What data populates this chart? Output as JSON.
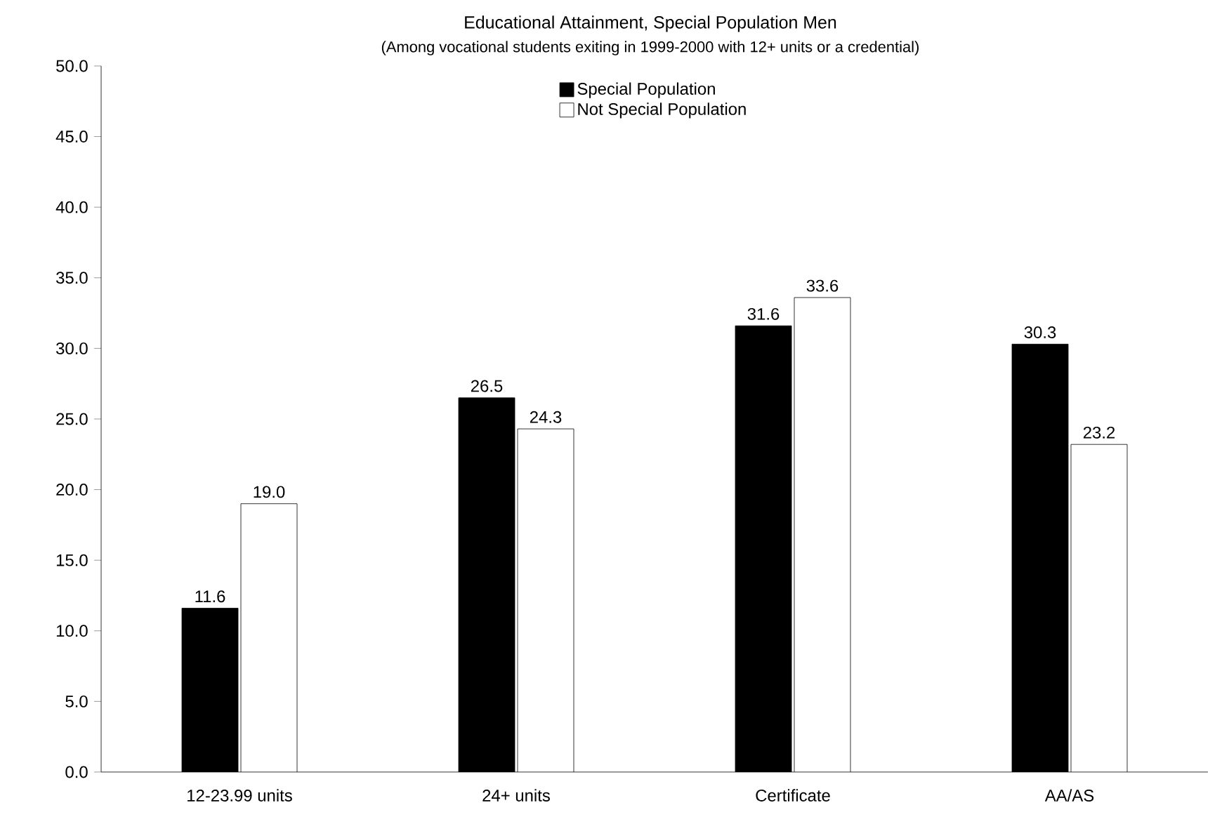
{
  "chart_data": {
    "type": "bar",
    "title": "Educational Attainment, Special Population Men",
    "subtitle": "(Among vocational students exiting in 1999-2000 with 12+ units or a credential)",
    "categories": [
      "12-23.99 units",
      "24+ units",
      "Certificate",
      "AA/AS"
    ],
    "series": [
      {
        "name": "Special Population",
        "color": "#000000",
        "values": [
          11.6,
          26.5,
          31.6,
          30.3
        ],
        "value_labels": [
          "11.6",
          "26.5",
          "31.6",
          "30.3"
        ]
      },
      {
        "name": "Not Special Population",
        "color": "#ffffff",
        "values": [
          19.0,
          24.3,
          33.6,
          23.2
        ],
        "value_labels": [
          "19.0",
          "24.3",
          "33.6",
          "23.2"
        ]
      }
    ],
    "ylim": [
      0,
      50
    ],
    "yticks": [
      {
        "value": 0,
        "label": "0.0"
      },
      {
        "value": 5,
        "label": "5.0"
      },
      {
        "value": 10,
        "label": "10.0"
      },
      {
        "value": 15,
        "label": "15.0"
      },
      {
        "value": 20,
        "label": "20.0"
      },
      {
        "value": 25,
        "label": "25.0"
      },
      {
        "value": 30,
        "label": "30.0"
      },
      {
        "value": 35,
        "label": "35.0"
      },
      {
        "value": 40,
        "label": "40.0"
      },
      {
        "value": 45,
        "label": "45.0"
      },
      {
        "value": 50,
        "label": "50.0"
      }
    ],
    "grid": false,
    "legend": "top"
  }
}
